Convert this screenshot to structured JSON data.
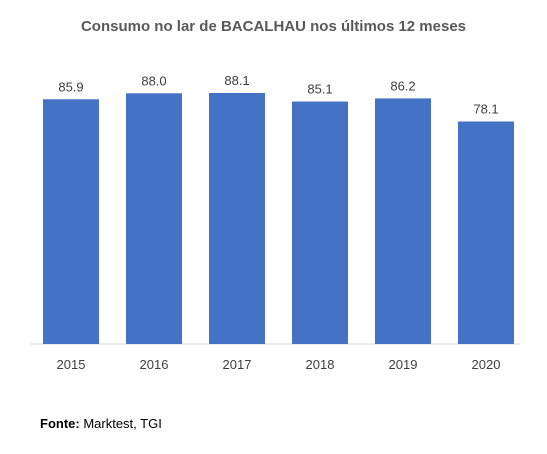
{
  "chart_data": {
    "type": "bar",
    "title": "Consumo no lar de BACALHAU nos últimos 12 meses",
    "categories": [
      "2015",
      "2016",
      "2017",
      "2018",
      "2019",
      "2020"
    ],
    "values": [
      85.9,
      88.0,
      88.1,
      85.1,
      86.2,
      78.1
    ],
    "data_labels": [
      "85.9",
      "88.0",
      "88.1",
      "85.1",
      "86.2",
      "78.1"
    ],
    "xlabel": "",
    "ylabel": "",
    "ylim": [
      0,
      88.1
    ],
    "grid": false,
    "legend": "none",
    "bar_color": "#4472C4"
  },
  "footer": {
    "source_key": "Fonte:",
    "source_value": " Marktest, TGI"
  }
}
